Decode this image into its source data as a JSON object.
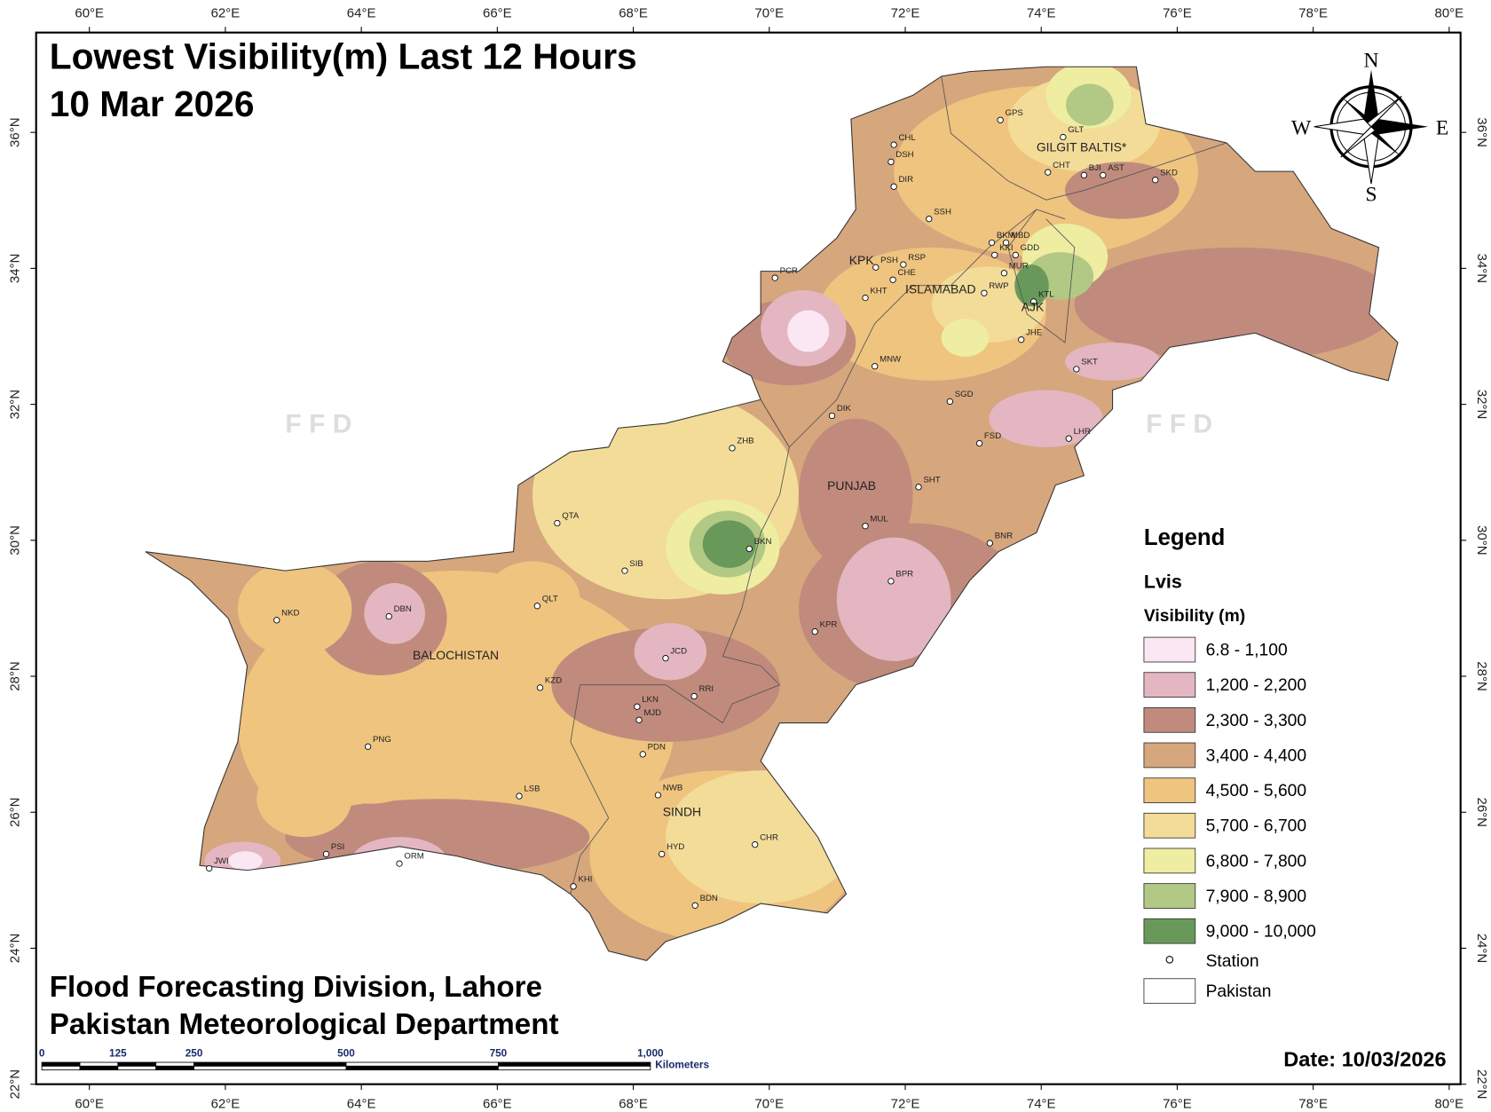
{
  "title": [
    "Lowest Visibility(m) Last 12 Hours",
    "10 Mar 2026"
  ],
  "longitude_labels": [
    "60°E",
    "62°E",
    "64°E",
    "66°E",
    "68°E",
    "70°E",
    "72°E",
    "74°E",
    "76°E",
    "78°E",
    "80°E"
  ],
  "latitude_labels": [
    "36°N",
    "34°N",
    "32°N",
    "30°N",
    "28°N",
    "26°N",
    "24°N",
    "22°N"
  ],
  "compass": [
    "N",
    "E",
    "S",
    "W"
  ],
  "watermark": [
    "F F D",
    "F F D"
  ],
  "regions": [
    "GILGIT BALTIS*",
    "KPK",
    "ISLAMABAD",
    "AJK",
    "PUNJAB",
    "BALOCHISTAN",
    "SINDH"
  ],
  "stations": [
    "GPS",
    "GLT",
    "CHT",
    "BJI",
    "AST",
    "SKD",
    "CHL",
    "DSH",
    "DIR",
    "SSH",
    "BKM",
    "MBD",
    "KKI",
    "GDD",
    "MUR",
    "RWP",
    "KTL",
    "JHE",
    "SKT",
    "PCR",
    "PSH",
    "RSP",
    "CHE",
    "KHT",
    "MNW",
    "SGD",
    "DIK",
    "FSD",
    "LHR",
    "ZHB",
    "SHT",
    "MUL",
    "BNR",
    "QTA",
    "BKN",
    "SIB",
    "BPR",
    "NKD",
    "DBN",
    "QLT",
    "KPR",
    "JCD",
    "KZD",
    "RRI",
    "LKN",
    "MJD",
    "PNG",
    "PDN",
    "NWB",
    "LSB",
    "CHR",
    "HYD",
    "PSI",
    "ORM",
    "JWI",
    "KHI",
    "BDN"
  ],
  "legend": {
    "title": "Legend",
    "layer": "Lvis",
    "field": "Visibility (m)",
    "classes": [
      {
        "label": "6.8 - 1,100",
        "color": "#fbe6f4"
      },
      {
        "label": "1,200 - 2,200",
        "color": "#e3b6c2"
      },
      {
        "label": "2,300 - 3,300",
        "color": "#c08b7d"
      },
      {
        "label": "3,400 - 4,400",
        "color": "#d6a67d"
      },
      {
        "label": "4,500 - 5,600",
        "color": "#efc47f"
      },
      {
        "label": "5,700 - 6,700",
        "color": "#f2dc98"
      },
      {
        "label": "6,800 - 7,800",
        "color": "#eeeda2"
      },
      {
        "label": "7,900 - 8,900",
        "color": "#b1c985"
      },
      {
        "label": "9,000 - 10,000",
        "color": "#69995a"
      }
    ],
    "station": "Station",
    "boundary": "Pakistan"
  },
  "footer": [
    "Flood Forecasting Division, Lahore",
    "Pakistan Meteorological Department"
  ],
  "scale_bar": {
    "ticks": [
      "0",
      "125",
      "250",
      "500",
      "750",
      "1,000"
    ],
    "unit": "Kilometers"
  },
  "date": "Date: 10/03/2026"
}
